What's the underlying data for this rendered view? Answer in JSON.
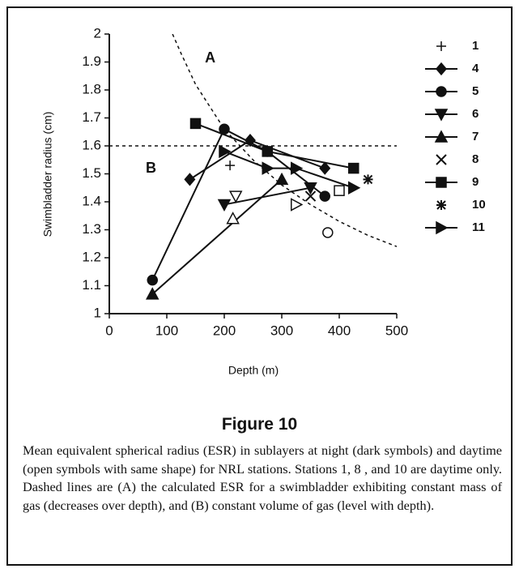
{
  "chart_data": {
    "type": "scatter",
    "x_label": "Depth (m)",
    "y_label": "Swimbladder radius (cm)",
    "xlim": [
      0,
      500
    ],
    "xticks": [
      0,
      100,
      200,
      300,
      400,
      500
    ],
    "ylim": [
      1,
      2
    ],
    "yticks": [
      1,
      1.1,
      1.2,
      1.3,
      1.4,
      1.5,
      1.6,
      1.7,
      1.8,
      1.9,
      2
    ],
    "color": "#111111",
    "series": [
      {
        "name": "1",
        "marker": "plus",
        "line": false,
        "x": [
          210
        ],
        "values": [
          1.53
        ],
        "open_x": [],
        "open_values": []
      },
      {
        "name": "4",
        "marker": "diamond",
        "line": true,
        "x": [
          140,
          245,
          375
        ],
        "values": [
          1.48,
          1.62,
          1.52
        ],
        "open_x": [],
        "open_values": []
      },
      {
        "name": "5",
        "marker": "circle",
        "line": true,
        "x": [
          75,
          200,
          275,
          375
        ],
        "values": [
          1.12,
          1.66,
          1.58,
          1.42
        ],
        "open_x": [
          380
        ],
        "open_values": [
          1.29
        ]
      },
      {
        "name": "6",
        "marker": "tri-down",
        "line": true,
        "x": [
          200,
          350
        ],
        "values": [
          1.39,
          1.45
        ],
        "open_x": [
          220
        ],
        "open_values": [
          1.42
        ]
      },
      {
        "name": "7",
        "marker": "tri-up",
        "line": true,
        "x": [
          75,
          300
        ],
        "values": [
          1.07,
          1.48
        ],
        "open_x": [
          215
        ],
        "open_values": [
          1.34
        ]
      },
      {
        "name": "8",
        "marker": "cross",
        "line": false,
        "x": [
          350
        ],
        "values": [
          1.42
        ],
        "open_x": [],
        "open_values": []
      },
      {
        "name": "9",
        "marker": "square",
        "line": true,
        "x": [
          150,
          275,
          425
        ],
        "values": [
          1.68,
          1.58,
          1.52
        ],
        "open_x": [
          400
        ],
        "open_values": [
          1.44
        ]
      },
      {
        "name": "10",
        "marker": "asterisk",
        "line": false,
        "x": [
          450
        ],
        "values": [
          1.48
        ],
        "open_x": [],
        "open_values": []
      },
      {
        "name": "11",
        "marker": "tri-right",
        "line": true,
        "x": [
          200,
          275,
          325,
          425
        ],
        "values": [
          1.58,
          1.52,
          1.52,
          1.45
        ],
        "open_x": [
          325
        ],
        "open_values": [
          1.39
        ]
      }
    ],
    "reference_lines": [
      {
        "label": "A",
        "x": [
          110,
          125,
          150,
          200,
          250,
          300,
          350,
          400,
          450,
          500
        ],
        "values": [
          2,
          1.93,
          1.82,
          1.66,
          1.55,
          1.46,
          1.39,
          1.33,
          1.28,
          1.24
        ]
      },
      {
        "label": "B",
        "x": [
          0,
          500
        ],
        "values": [
          1.6,
          1.6
        ]
      }
    ]
  },
  "figure": {
    "title": "Figure 10",
    "caption": "Mean equivalent spherical radius (ESR) in sublayers at night (dark symbols) and daytime (open symbols with same shape) for NRL stations. Stations 1, 8 , and 10 are daytime only. Dashed lines are (A) the calculated ESR for a swimbladder exhibiting constant mass of gas (decreases over depth), and (B) constant volume of gas (level with depth)."
  }
}
